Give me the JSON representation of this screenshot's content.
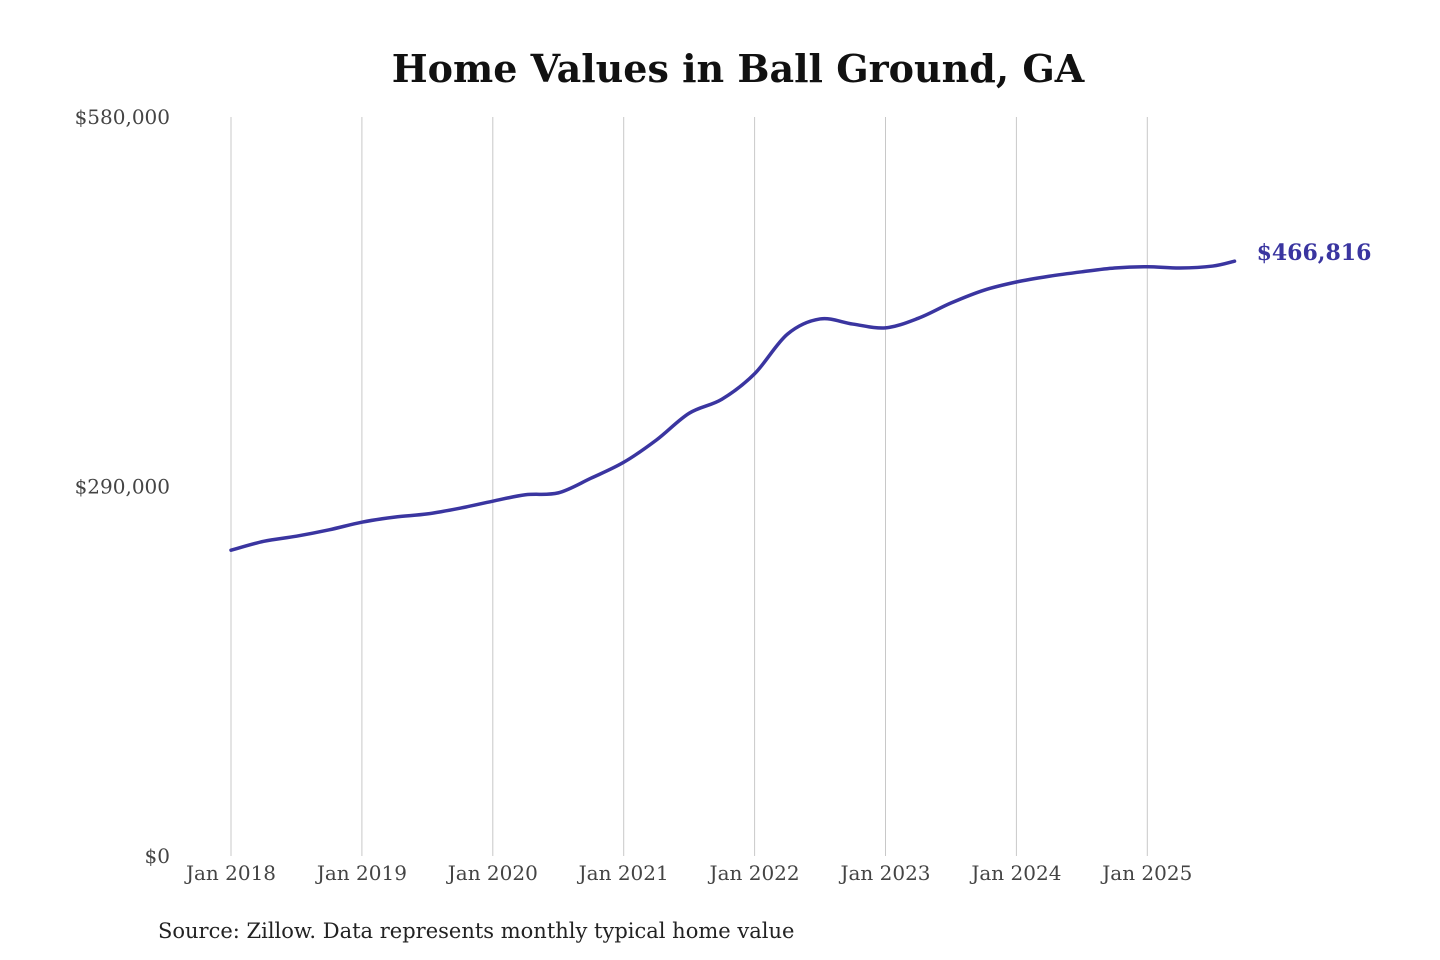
{
  "chart_data": {
    "type": "line",
    "title": "Home Values in Ball Ground, GA",
    "source": "Source: Zillow. Data represents monthly typical home value",
    "xlabel": "",
    "ylabel": "",
    "ylim": [
      0,
      580000
    ],
    "y_ticks": [
      0,
      290000,
      580000
    ],
    "y_tick_labels": [
      "$0",
      "$290,000",
      "$580,000"
    ],
    "x_tick_labels": [
      "Jan 2018",
      "Jan 2019",
      "Jan 2020",
      "Jan 2021",
      "Jan 2022",
      "Jan 2023",
      "Jan 2024",
      "Jan 2025"
    ],
    "grid": "vertical",
    "line_color": "#3a35a0",
    "end_label": "$466,816",
    "series": [
      {
        "x": [
          "2018-01",
          "2018-04",
          "2018-07",
          "2018-10",
          "2019-01",
          "2019-04",
          "2019-07",
          "2019-10",
          "2020-01",
          "2020-04",
          "2020-07",
          "2020-10",
          "2021-01",
          "2021-04",
          "2021-07",
          "2021-10",
          "2022-01",
          "2022-04",
          "2022-07",
          "2022-10",
          "2023-01",
          "2023-04",
          "2023-07",
          "2023-10",
          "2024-01",
          "2024-04",
          "2024-07",
          "2024-10",
          "2025-01",
          "2025-04",
          "2025-07",
          "2025-09"
        ],
        "values": [
          240000,
          247000,
          251000,
          256000,
          262000,
          266000,
          268500,
          273000,
          278500,
          283500,
          285000,
          296500,
          309000,
          326500,
          347500,
          358500,
          378500,
          409500,
          421500,
          417500,
          414500,
          422000,
          434000,
          444000,
          450500,
          455000,
          458500,
          461500,
          462500,
          461500,
          463000,
          466816
        ]
      }
    ]
  }
}
